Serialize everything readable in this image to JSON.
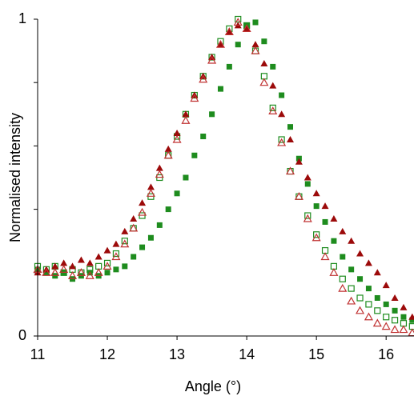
{
  "chart_data": {
    "type": "scatter",
    "xlabel": "Angle (°)",
    "ylabel": "Normalised intensity",
    "x": [
      11,
      11.125,
      11.25,
      11.375,
      11.5,
      11.625,
      11.75,
      11.875,
      12,
      12.125,
      12.25,
      12.375,
      12.5,
      12.625,
      12.75,
      12.875,
      13,
      13.125,
      13.25,
      13.375,
      13.5,
      13.625,
      13.75,
      13.875,
      14,
      14.125,
      14.25,
      14.375,
      14.5,
      14.625,
      14.75,
      14.875,
      15,
      15.125,
      15.25,
      15.375,
      15.5,
      15.625,
      15.75,
      15.875,
      16,
      16.125,
      16.25,
      16.375
    ],
    "series": [
      {
        "color": "#1e8c1e",
        "marker": "square",
        "filled": true,
        "values": [
          0.21,
          0.2,
          0.19,
          0.2,
          0.18,
          0.19,
          0.2,
          0.19,
          0.2,
          0.21,
          0.22,
          0.25,
          0.28,
          0.31,
          0.35,
          0.4,
          0.45,
          0.5,
          0.57,
          0.63,
          0.7,
          0.78,
          0.85,
          0.92,
          0.98,
          0.99,
          0.93,
          0.85,
          0.76,
          0.66,
          0.56,
          0.48,
          0.41,
          0.36,
          0.3,
          0.25,
          0.21,
          0.18,
          0.15,
          0.12,
          0.1,
          0.08,
          0.06,
          0.05
        ]
      },
      {
        "color": "#1e8c1e",
        "marker": "square",
        "filled": false,
        "values": [
          0.22,
          0.21,
          0.22,
          0.2,
          0.21,
          0.2,
          0.21,
          0.22,
          0.23,
          0.26,
          0.3,
          0.34,
          0.38,
          0.44,
          0.5,
          0.57,
          0.63,
          0.7,
          0.76,
          0.82,
          0.88,
          0.93,
          0.97,
          1.0,
          0.98,
          0.9,
          0.82,
          0.72,
          0.62,
          0.52,
          0.44,
          0.38,
          0.32,
          0.27,
          0.22,
          0.18,
          0.15,
          0.12,
          0.1,
          0.08,
          0.06,
          0.05,
          0.04,
          0.03
        ]
      },
      {
        "color": "#9c0a0a",
        "marker": "triangle",
        "filled": true,
        "values": [
          0.2,
          0.21,
          0.22,
          0.23,
          0.22,
          0.24,
          0.23,
          0.25,
          0.27,
          0.29,
          0.33,
          0.37,
          0.42,
          0.47,
          0.53,
          0.59,
          0.64,
          0.7,
          0.76,
          0.82,
          0.88,
          0.92,
          0.96,
          0.98,
          0.97,
          0.92,
          0.86,
          0.79,
          0.7,
          0.62,
          0.55,
          0.5,
          0.45,
          0.41,
          0.37,
          0.33,
          0.3,
          0.26,
          0.23,
          0.2,
          0.16,
          0.12,
          0.09,
          0.06
        ]
      },
      {
        "color": "#c03232",
        "marker": "triangle",
        "filled": false,
        "values": [
          0.21,
          0.2,
          0.2,
          0.21,
          0.19,
          0.2,
          0.19,
          0.2,
          0.22,
          0.25,
          0.29,
          0.34,
          0.39,
          0.45,
          0.51,
          0.57,
          0.62,
          0.68,
          0.75,
          0.81,
          0.87,
          0.92,
          0.96,
          0.99,
          0.97,
          0.9,
          0.8,
          0.71,
          0.61,
          0.52,
          0.44,
          0.37,
          0.31,
          0.25,
          0.2,
          0.15,
          0.11,
          0.08,
          0.06,
          0.04,
          0.03,
          0.02,
          0.02,
          0.01
        ]
      }
    ],
    "xlim": [
      11,
      16.4
    ],
    "xticks": [
      11,
      12,
      13,
      14,
      15,
      16
    ],
    "ylim": [
      0,
      1
    ],
    "yticks": [
      0,
      1
    ],
    "yminorticks": [
      0.2,
      0.4,
      0.6,
      0.8
    ]
  }
}
